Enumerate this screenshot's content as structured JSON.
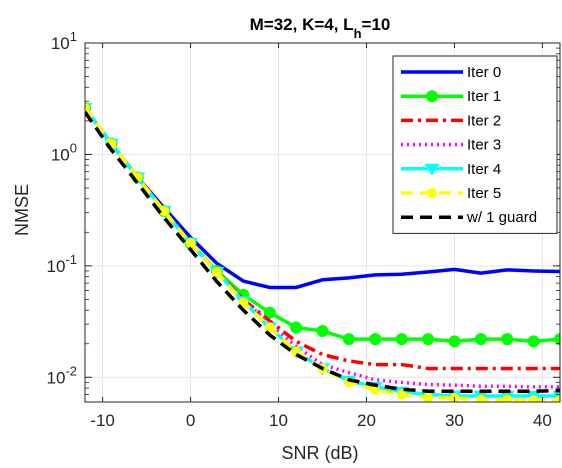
{
  "chart_data": {
    "type": "line",
    "title_main": "M=32, K=4, L",
    "title_sub": "h",
    "title_tail": "=10",
    "xlabel": "SNR (dB)",
    "ylabel": "NMSE",
    "xlim": [
      -12,
      42
    ],
    "ylim": [
      0.006,
      10
    ],
    "yscale": "log",
    "grid": true,
    "legend_position": "top-right",
    "x_ticks": [
      -10,
      0,
      10,
      20,
      30,
      40
    ],
    "x_tick_labels": [
      "-10",
      "0",
      "10",
      "20",
      "30",
      "40"
    ],
    "y_ticks": [
      {
        "value": 10,
        "base": "10",
        "exp": "1"
      },
      {
        "value": 1,
        "base": "10",
        "exp": "0"
      },
      {
        "value": 0.1,
        "base": "10",
        "exp": "-1"
      },
      {
        "value": 0.01,
        "base": "10",
        "exp": "-2"
      }
    ],
    "x": [
      -12,
      -9,
      -6,
      -3,
      0,
      3,
      6,
      9,
      12,
      15,
      18,
      21,
      24,
      27,
      30,
      33,
      36,
      39,
      42
    ],
    "series": [
      {
        "name": "Iter 0",
        "color": "#0000ff",
        "dash": "solid",
        "marker": "none",
        "values": [
          2.6,
          1.25,
          0.62,
          0.33,
          0.18,
          0.105,
          0.073,
          0.064,
          0.064,
          0.075,
          0.078,
          0.083,
          0.084,
          0.088,
          0.093,
          0.086,
          0.092,
          0.09,
          0.089
        ]
      },
      {
        "name": "Iter 1",
        "color": "#00ff00",
        "dash": "solid",
        "marker": "circle",
        "values": [
          2.6,
          1.25,
          0.62,
          0.31,
          0.16,
          0.09,
          0.055,
          0.038,
          0.028,
          0.026,
          0.022,
          0.022,
          0.022,
          0.022,
          0.021,
          0.022,
          0.022,
          0.021,
          0.022
        ]
      },
      {
        "name": "Iter 2",
        "color": "#ff0000",
        "dash": "dashdot",
        "marker": "none",
        "values": [
          2.6,
          1.25,
          0.62,
          0.31,
          0.16,
          0.088,
          0.05,
          0.032,
          0.021,
          0.016,
          0.014,
          0.013,
          0.013,
          0.012,
          0.012,
          0.012,
          0.012,
          0.012,
          0.012
        ]
      },
      {
        "name": "Iter 3",
        "color": "#ff00ff",
        "dash": "dotted",
        "marker": "none",
        "values": [
          2.6,
          1.25,
          0.62,
          0.31,
          0.16,
          0.088,
          0.05,
          0.03,
          0.019,
          0.013,
          0.011,
          0.0095,
          0.009,
          0.0086,
          0.0085,
          0.0083,
          0.0083,
          0.0082,
          0.0082
        ]
      },
      {
        "name": "Iter 4",
        "color": "#00ffff",
        "dash": "solid",
        "marker": "triangle-down",
        "values": [
          2.6,
          1.25,
          0.62,
          0.31,
          0.16,
          0.088,
          0.048,
          0.028,
          0.017,
          0.012,
          0.0093,
          0.0082,
          0.0074,
          0.007,
          0.0068,
          0.0068,
          0.0068,
          0.0068,
          0.0068
        ]
      },
      {
        "name": "Iter 5",
        "color": "#ffff00",
        "dash": "dashed",
        "marker": "circle-small",
        "values": [
          2.6,
          1.25,
          0.62,
          0.31,
          0.16,
          0.088,
          0.047,
          0.028,
          0.017,
          0.012,
          0.009,
          0.0077,
          0.007,
          0.0066,
          0.0065,
          0.0063,
          0.0063,
          0.0062,
          0.0062
        ]
      },
      {
        "name": "w/ 1 guard",
        "color": "#000000",
        "dash": "dashed",
        "marker": "none",
        "values": [
          2.4,
          1.1,
          0.55,
          0.27,
          0.14,
          0.072,
          0.04,
          0.024,
          0.016,
          0.012,
          0.0095,
          0.0085,
          0.0078,
          0.0075,
          0.0075,
          0.0075,
          0.0075,
          0.0075,
          0.0076
        ]
      }
    ]
  }
}
